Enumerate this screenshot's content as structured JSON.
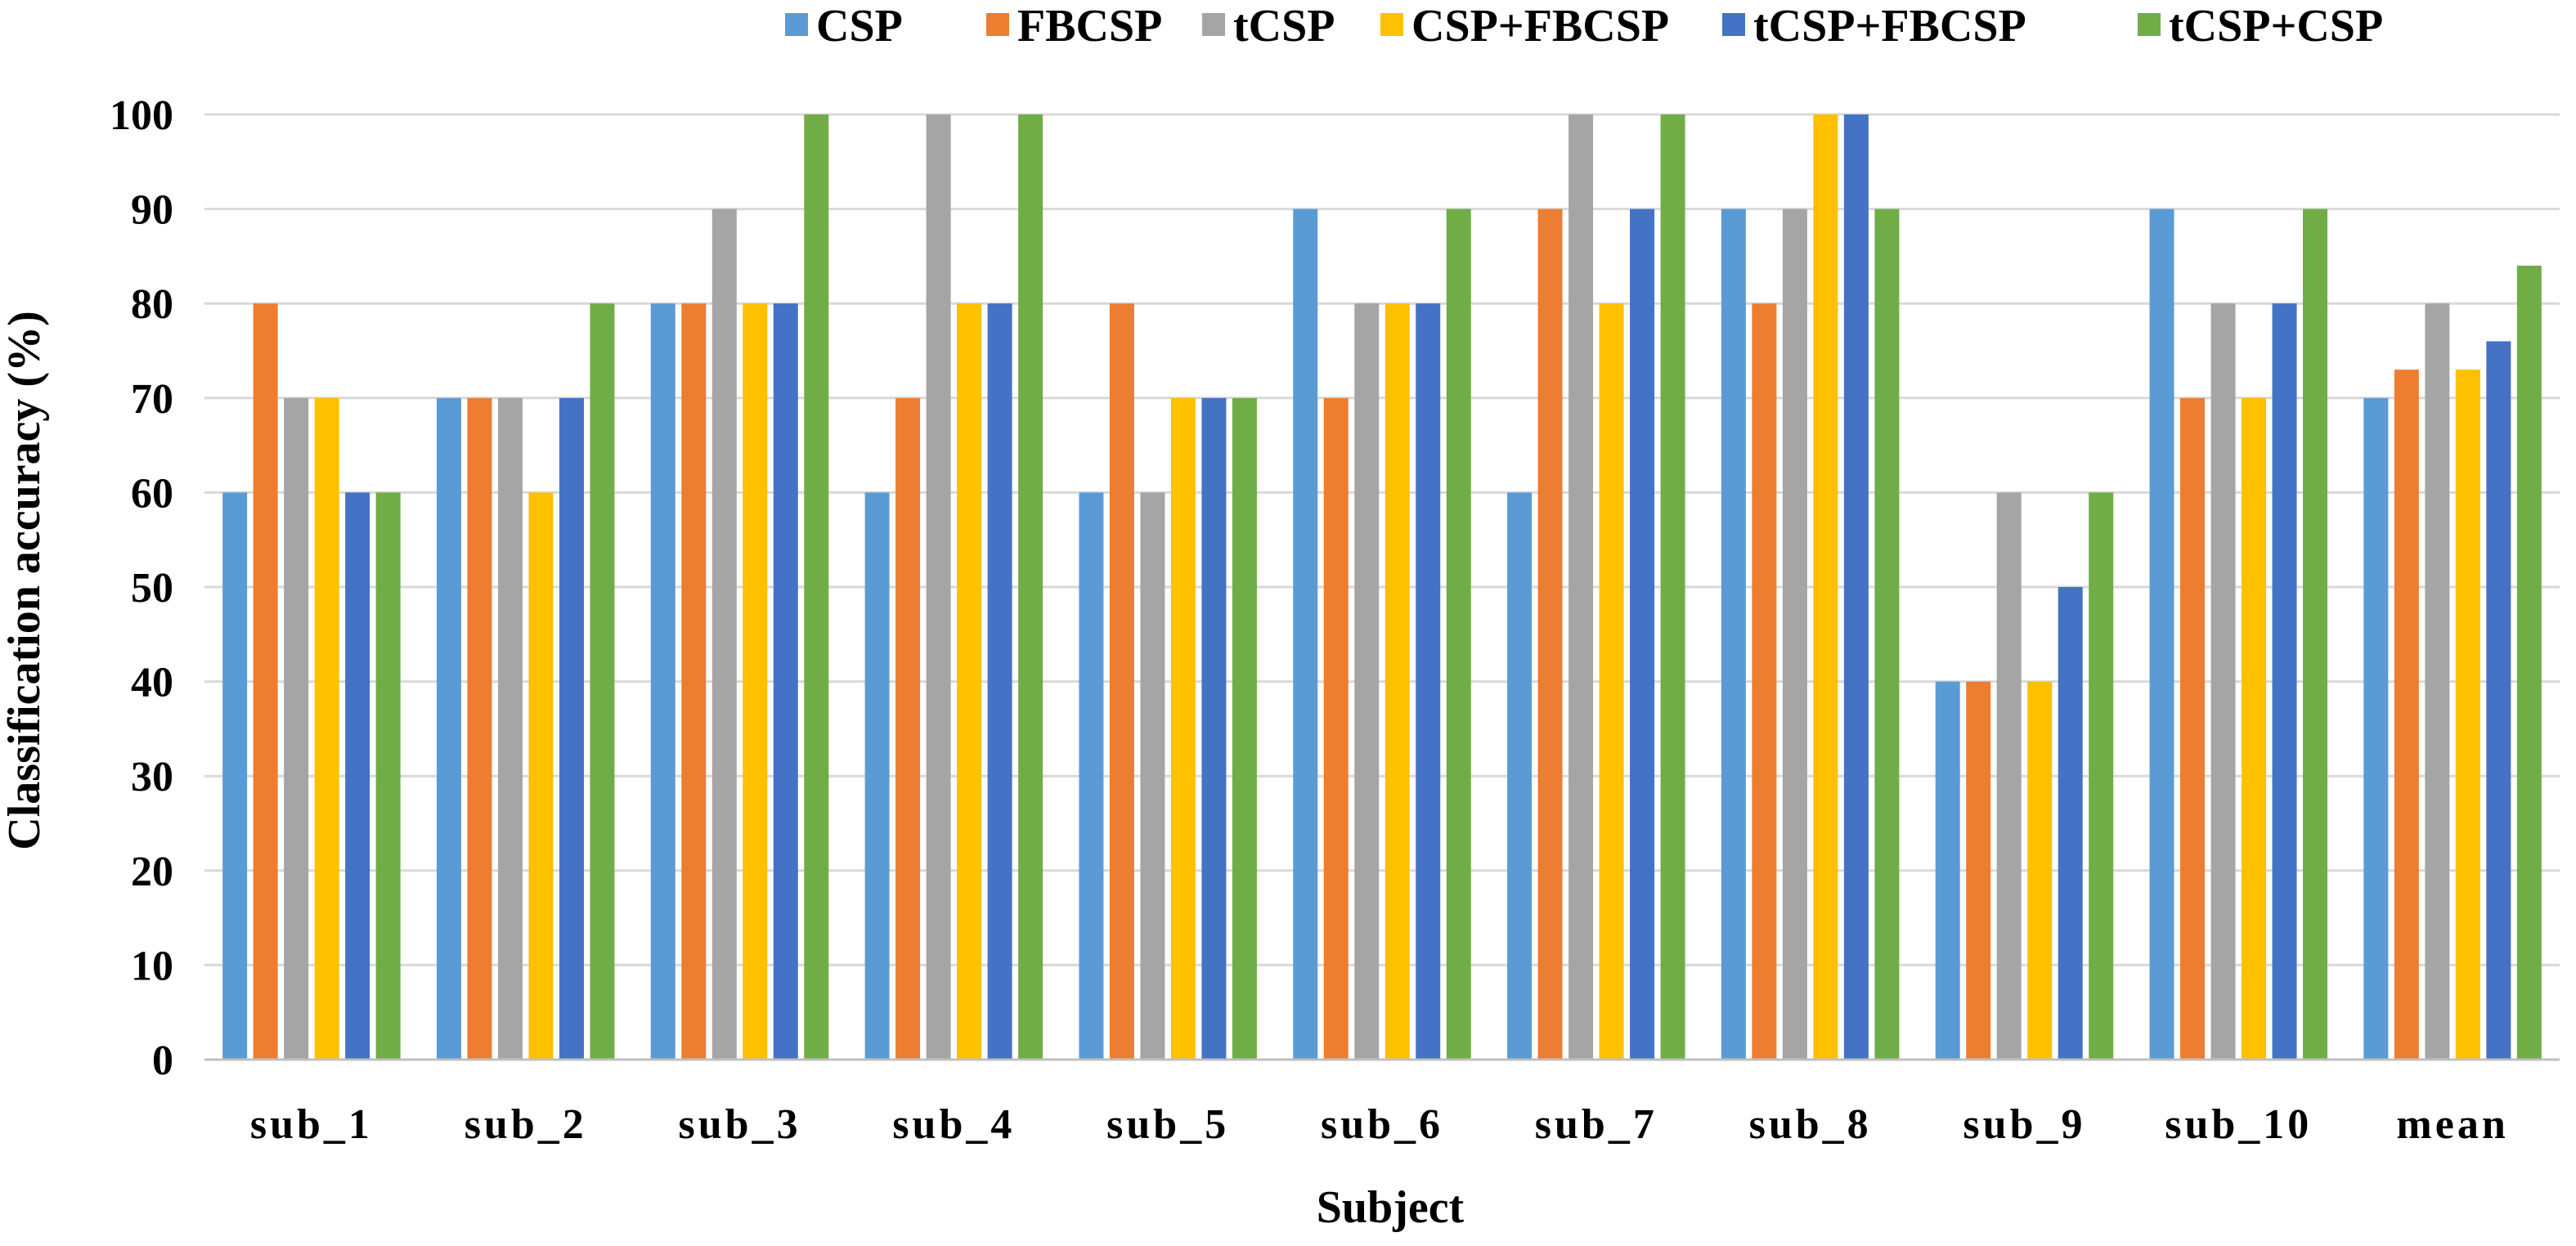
{
  "chart_data": {
    "type": "bar",
    "title": "",
    "xlabel": "Subject",
    "ylabel": "Classification accuracy (%)",
    "ylim": [
      0,
      100
    ],
    "yticks": [
      0,
      10,
      20,
      30,
      40,
      50,
      60,
      70,
      80,
      90,
      100
    ],
    "grid": true,
    "legend_position": "top",
    "categories": [
      "sub_1",
      "sub_2",
      "sub_3",
      "sub_4",
      "sub_5",
      "sub_6",
      "sub_7",
      "sub_8",
      "sub_9",
      "sub_10",
      "mean"
    ],
    "series": [
      {
        "name": "CSP",
        "color": "#5b9bd5",
        "values": [
          60,
          70,
          80,
          60,
          60,
          90,
          60,
          90,
          40,
          90,
          70
        ]
      },
      {
        "name": "FBCSP",
        "color": "#ed7d31",
        "values": [
          80,
          70,
          80,
          70,
          80,
          70,
          90,
          80,
          40,
          70,
          73
        ]
      },
      {
        "name": "tCSP",
        "color": "#a5a5a5",
        "values": [
          70,
          70,
          90,
          100,
          60,
          80,
          100,
          90,
          60,
          80,
          80
        ]
      },
      {
        "name": "CSP+FBCSP",
        "color": "#ffc000",
        "values": [
          70,
          60,
          80,
          80,
          70,
          80,
          80,
          100,
          40,
          70,
          73
        ]
      },
      {
        "name": "tCSP+FBCSP",
        "color": "#4472c4",
        "values": [
          60,
          70,
          80,
          80,
          70,
          80,
          90,
          100,
          50,
          80,
          76
        ]
      },
      {
        "name": "tCSP+CSP",
        "color": "#70ad47",
        "values": [
          60,
          80,
          100,
          100,
          70,
          90,
          100,
          90,
          60,
          90,
          84
        ]
      }
    ]
  }
}
